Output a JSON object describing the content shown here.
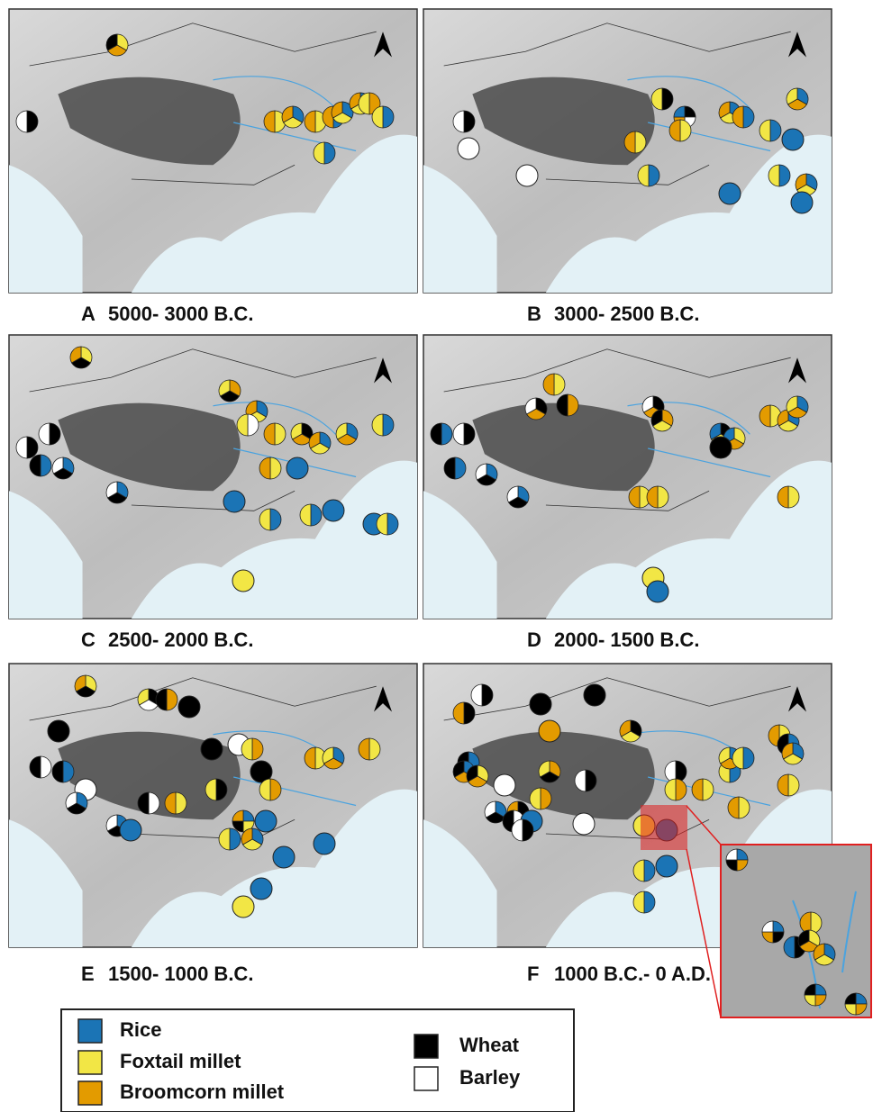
{
  "panels": [
    {
      "letter": "A",
      "period": "5000- 3000 B.C."
    },
    {
      "letter": "B",
      "period": "3000- 2500 B.C."
    },
    {
      "letter": "C",
      "period": "2500- 2000 B.C."
    },
    {
      "letter": "D",
      "period": "2000- 1500 B.C."
    },
    {
      "letter": "E",
      "period": "1500- 1000 B.C."
    },
    {
      "letter": "F",
      "period": "1000 B.C.- 0 A.D."
    }
  ],
  "legend": {
    "items": [
      {
        "label": "Rice",
        "color": "#1b74b5"
      },
      {
        "label": "Foxtail millet",
        "color": "#f2e645"
      },
      {
        "label": "Broomcorn millet",
        "color": "#e39b00"
      },
      {
        "label": "Wheat",
        "color": "#000000"
      },
      {
        "label": "Barley",
        "color": "#ffffff"
      }
    ]
  }
}
